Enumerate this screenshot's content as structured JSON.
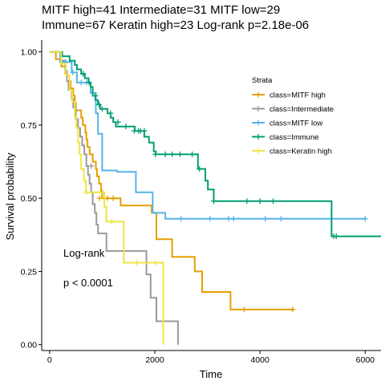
{
  "chart_data": {
    "type": "line",
    "subtype": "kaplan-meier",
    "title_lines": [
      "MITF high=41 Intermediate=31 MITF low=29",
      "Immune=67 Keratin high=23 Log-rank p=2.18e-06"
    ],
    "xlabel": "Time",
    "ylabel": "Survival probability",
    "xlim": [
      -150,
      6300
    ],
    "ylim": [
      -0.02,
      1.04
    ],
    "x_ticks": [
      0,
      2000,
      4000,
      6000
    ],
    "y_ticks": [
      0.0,
      0.25,
      0.5,
      0.75,
      1.0
    ],
    "x_tick_labels": [
      "0",
      "2000",
      "4000",
      "6000"
    ],
    "y_tick_labels": [
      "0.00",
      "0.25",
      "0.50",
      "0.75",
      "1.00"
    ],
    "grid": false,
    "legend": {
      "title": "Strata",
      "position": "right",
      "labels": [
        "class=MITF high",
        "class=Intermediate",
        "class=MITF low",
        "class=Immune",
        "class=Keratin high"
      ]
    },
    "annotations": [
      "Log-rank",
      "p < 0.0001"
    ],
    "series": [
      {
        "name": "class=MITF high",
        "color": "#E69F00",
        "steps": [
          [
            0,
            1.0
          ],
          [
            120,
            0.975
          ],
          [
            220,
            0.95
          ],
          [
            300,
            0.925
          ],
          [
            330,
            0.9
          ],
          [
            400,
            0.875
          ],
          [
            450,
            0.85
          ],
          [
            480,
            0.825
          ],
          [
            500,
            0.8
          ],
          [
            600,
            0.775
          ],
          [
            630,
            0.75
          ],
          [
            680,
            0.725
          ],
          [
            700,
            0.7
          ],
          [
            720,
            0.675
          ],
          [
            760,
            0.65
          ],
          [
            820,
            0.625
          ],
          [
            880,
            0.6
          ],
          [
            900,
            0.575
          ],
          [
            940,
            0.55
          ],
          [
            980,
            0.525
          ],
          [
            1000,
            0.5
          ],
          [
            1350,
            0.475
          ],
          [
            1940,
            0.45
          ],
          [
            2030,
            0.36
          ],
          [
            2150,
            0.36
          ],
          [
            2330,
            0.3
          ],
          [
            2760,
            0.25
          ],
          [
            2900,
            0.18
          ],
          [
            3440,
            0.12
          ],
          [
            4650,
            0.12
          ]
        ],
        "censor": [
          [
            950,
            0.5
          ],
          [
            1100,
            0.5
          ],
          [
            1210,
            0.5
          ],
          [
            3700,
            0.12
          ],
          [
            4620,
            0.12
          ]
        ]
      },
      {
        "name": "class=Intermediate",
        "color": "#999999",
        "steps": [
          [
            0,
            1.0
          ],
          [
            200,
            0.97
          ],
          [
            300,
            0.935
          ],
          [
            330,
            0.9
          ],
          [
            360,
            0.87
          ],
          [
            420,
            0.84
          ],
          [
            450,
            0.81
          ],
          [
            500,
            0.77
          ],
          [
            540,
            0.74
          ],
          [
            580,
            0.71
          ],
          [
            620,
            0.68
          ],
          [
            660,
            0.65
          ],
          [
            700,
            0.61
          ],
          [
            730,
            0.58
          ],
          [
            760,
            0.55
          ],
          [
            790,
            0.52
          ],
          [
            820,
            0.48
          ],
          [
            860,
            0.45
          ],
          [
            890,
            0.41
          ],
          [
            920,
            0.38
          ],
          [
            1080,
            0.32
          ],
          [
            1840,
            0.24
          ],
          [
            1920,
            0.16
          ],
          [
            2030,
            0.08
          ],
          [
            2280,
            0.08
          ],
          [
            2440,
            0.0
          ]
        ],
        "censor": [
          [
            790,
            0.61
          ]
        ]
      },
      {
        "name": "class=MITF low",
        "color": "#56B4E9",
        "steps": [
          [
            0,
            1.0
          ],
          [
            200,
            0.965
          ],
          [
            420,
            0.93
          ],
          [
            520,
            0.895
          ],
          [
            780,
            0.86
          ],
          [
            880,
            0.79
          ],
          [
            920,
            0.72
          ],
          [
            1000,
            0.635
          ],
          [
            1000,
            0.595
          ],
          [
            1280,
            0.59
          ],
          [
            1640,
            0.52
          ],
          [
            1960,
            0.45
          ],
          [
            2200,
            0.43
          ],
          [
            6000,
            0.43
          ]
        ],
        "censor": [
          [
            310,
            0.965
          ],
          [
            440,
            0.93
          ],
          [
            600,
            0.895
          ],
          [
            700,
            0.895
          ],
          [
            2500,
            0.43
          ],
          [
            3050,
            0.43
          ],
          [
            3400,
            0.43
          ],
          [
            3500,
            0.43
          ],
          [
            4100,
            0.43
          ],
          [
            4400,
            0.43
          ],
          [
            6000,
            0.43
          ]
        ]
      },
      {
        "name": "class=Immune",
        "color": "#009E73",
        "steps": [
          [
            0,
            1.0
          ],
          [
            240,
            0.985
          ],
          [
            380,
            0.97
          ],
          [
            480,
            0.955
          ],
          [
            520,
            0.94
          ],
          [
            600,
            0.925
          ],
          [
            670,
            0.91
          ],
          [
            740,
            0.895
          ],
          [
            780,
            0.88
          ],
          [
            820,
            0.85
          ],
          [
            870,
            0.835
          ],
          [
            920,
            0.82
          ],
          [
            960,
            0.805
          ],
          [
            1100,
            0.79
          ],
          [
            1160,
            0.775
          ],
          [
            1210,
            0.76
          ],
          [
            1260,
            0.745
          ],
          [
            1620,
            0.73
          ],
          [
            1800,
            0.71
          ],
          [
            1890,
            0.69
          ],
          [
            1980,
            0.66
          ],
          [
            2020,
            0.65
          ],
          [
            2820,
            0.6
          ],
          [
            2960,
            0.56
          ],
          [
            3010,
            0.53
          ],
          [
            3120,
            0.49
          ],
          [
            5360,
            0.37
          ],
          [
            6300,
            0.37
          ]
        ],
        "censor": [
          [
            640,
            0.925
          ],
          [
            750,
            0.895
          ],
          [
            870,
            0.85
          ],
          [
            940,
            0.82
          ],
          [
            1000,
            0.805
          ],
          [
            1160,
            0.79
          ],
          [
            1300,
            0.76
          ],
          [
            1450,
            0.745
          ],
          [
            1610,
            0.73
          ],
          [
            1690,
            0.73
          ],
          [
            1730,
            0.73
          ],
          [
            1800,
            0.73
          ],
          [
            2010,
            0.65
          ],
          [
            2200,
            0.65
          ],
          [
            2330,
            0.65
          ],
          [
            2480,
            0.65
          ],
          [
            2710,
            0.65
          ],
          [
            2850,
            0.6
          ],
          [
            3120,
            0.49
          ],
          [
            3750,
            0.49
          ],
          [
            4000,
            0.49
          ],
          [
            4250,
            0.49
          ],
          [
            5400,
            0.37
          ],
          [
            5450,
            0.37
          ]
        ]
      },
      {
        "name": "class=Keratin high",
        "color": "#F0E442",
        "steps": [
          [
            0,
            1.0
          ],
          [
            220,
            0.96
          ],
          [
            310,
            0.92
          ],
          [
            380,
            0.87
          ],
          [
            430,
            0.83
          ],
          [
            480,
            0.78
          ],
          [
            510,
            0.74
          ],
          [
            540,
            0.69
          ],
          [
            570,
            0.65
          ],
          [
            600,
            0.6
          ],
          [
            650,
            0.56
          ],
          [
            690,
            0.52
          ],
          [
            1040,
            0.47
          ],
          [
            1080,
            0.42
          ],
          [
            1410,
            0.28
          ],
          [
            2100,
            0.28
          ],
          [
            2160,
            0.0
          ]
        ],
        "censor": [
          [
            700,
            0.52
          ],
          [
            1180,
            0.42
          ],
          [
            1660,
            0.28
          ],
          [
            2010,
            0.28
          ]
        ]
      }
    ]
  }
}
